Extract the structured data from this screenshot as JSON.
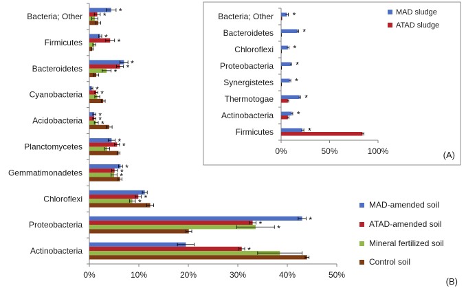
{
  "chart_data": [
    {
      "id": "main",
      "type": "bar",
      "orientation": "horizontal",
      "panel_label": "(B)",
      "categories": [
        "Bacteria; Other",
        "Firmicutes",
        "Bacteroidetes",
        "Cyanobacteria",
        "Acidobacteria",
        "Planctomycetes",
        "Gemmatimonadetes",
        "Chloroflexi",
        "Proteobacteria",
        "Actinobacteria"
      ],
      "series": [
        {
          "name": "MAD-amended soil",
          "color": "#4f6fc4",
          "values": [
            4.4,
            2.2,
            7.0,
            0.5,
            1.0,
            4.5,
            6.3,
            11.2,
            43.0,
            19.5
          ],
          "errors": [
            1.0,
            0.3,
            0.8,
            0.2,
            0.3,
            0.7,
            0.4,
            0.5,
            0.8,
            1.7
          ],
          "significant": [
            true,
            true,
            true,
            true,
            true,
            true,
            true,
            false,
            true,
            false
          ]
        },
        {
          "name": "ATAD-amended soil",
          "color": "#b5242a",
          "values": [
            1.6,
            4.2,
            6.2,
            1.4,
            1.0,
            5.6,
            5.1,
            9.9,
            33.0,
            30.8
          ],
          "errors": [
            0.6,
            0.9,
            0.7,
            0.3,
            0.3,
            0.5,
            0.6,
            0.6,
            0.7,
            0.6
          ],
          "significant": [
            true,
            true,
            true,
            true,
            true,
            true,
            true,
            true,
            true,
            true
          ]
        },
        {
          "name": "Mineral fertilized soil",
          "color": "#93b84a",
          "values": [
            1.1,
            1.0,
            3.5,
            1.6,
            1.4,
            3.6,
            5.0,
            8.7,
            33.6,
            38.5
          ],
          "errors": [
            0.6,
            0.3,
            0.9,
            0.5,
            0.4,
            0.5,
            0.6,
            0.6,
            3.8,
            4.5
          ],
          "significant": [
            false,
            false,
            true,
            false,
            true,
            false,
            true,
            true,
            true,
            false
          ]
        },
        {
          "name": "Control soil",
          "color": "#7f3d16",
          "values": [
            1.8,
            0.6,
            1.4,
            2.8,
            4.0,
            5.9,
            6.2,
            12.3,
            20.1,
            44.0
          ],
          "errors": [
            0.5,
            0.2,
            0.5,
            0.4,
            0.6,
            0.3,
            0.4,
            0.7,
            0.6,
            0.4
          ],
          "significant": [
            false,
            false,
            false,
            false,
            false,
            false,
            false,
            false,
            false,
            false
          ]
        }
      ],
      "xlim": [
        0,
        50
      ],
      "xticks": [
        "0%",
        "10%",
        "20%",
        "30%",
        "40%",
        "50%"
      ],
      "legend": "bottom-right",
      "grid": false,
      "significance_marker": "*"
    },
    {
      "id": "inset",
      "type": "bar",
      "orientation": "horizontal",
      "panel_label": "(A)",
      "categories": [
        "Bacteria; Other",
        "Bacteroidetes",
        "Chloroflexi",
        "Proteobacteria",
        "Synergistetes",
        "Thermotogae",
        "Actinobacteria",
        "Firmicutes"
      ],
      "series": [
        {
          "name": "MAD sludge",
          "color": "#4f6fc4",
          "values": [
            6,
            17,
            7,
            10,
            9,
            19,
            11,
            22
          ],
          "errors": [
            1.5,
            1.0,
            1.2,
            0.8,
            1.0,
            1.0,
            1.0,
            1.5
          ],
          "significant": [
            true,
            true,
            true,
            true,
            true,
            true,
            true,
            true
          ]
        },
        {
          "name": "ATAD sludge",
          "color": "#b5242a",
          "values": [
            0.5,
            0.2,
            0.2,
            0.3,
            0.3,
            7,
            7,
            84
          ],
          "errors": [
            0.2,
            0.1,
            0.1,
            0.1,
            0.1,
            0.8,
            1.0,
            1.5
          ],
          "significant": [
            false,
            false,
            false,
            false,
            false,
            false,
            false,
            false
          ]
        }
      ],
      "xlim": [
        0,
        100
      ],
      "xticks": [
        "0%",
        "50%",
        "100%"
      ],
      "legend": "top-right",
      "grid": false,
      "significance_marker": "*"
    }
  ]
}
